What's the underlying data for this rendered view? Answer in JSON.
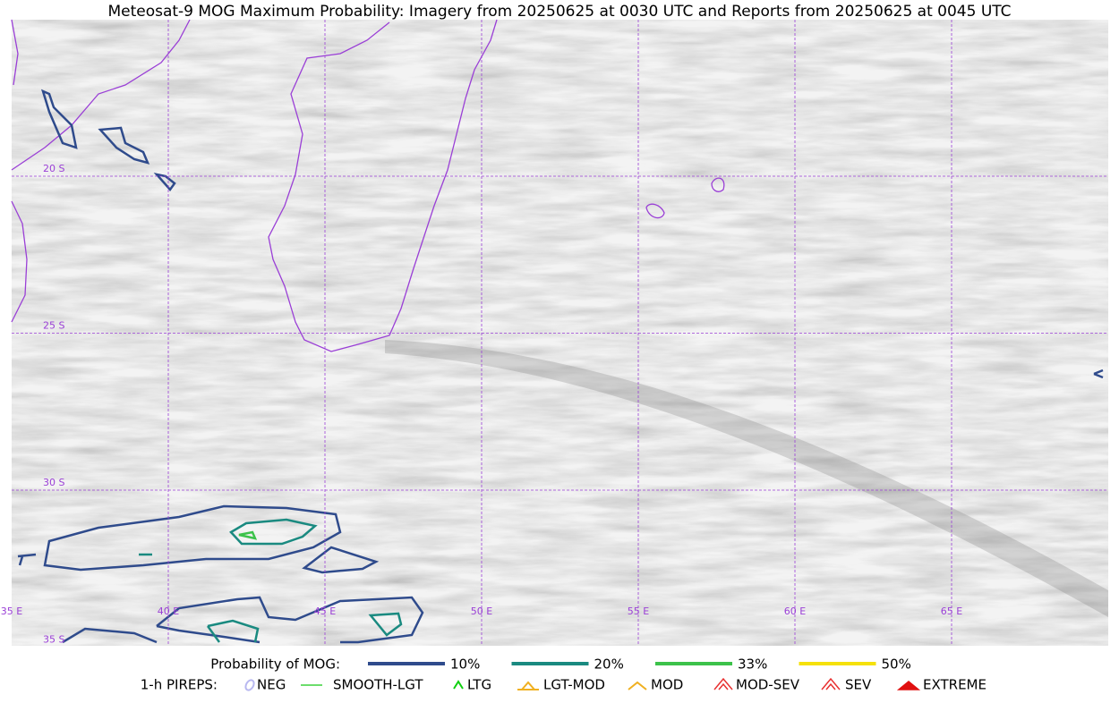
{
  "title": "Meteosat-9 MOG Maximum Probability: Imagery from 20250625 at 0030 UTC and Reports from 20250625 at 0045 UTC",
  "map": {
    "lat_labels": [
      "20 S",
      "25 S",
      "30 S",
      "35 S"
    ],
    "lon_labels": [
      "35 E",
      "40 E",
      "45 E",
      "50 E",
      "55 E",
      "60 E",
      "65 E"
    ]
  },
  "legend": {
    "probability": {
      "label": "Probability of MOG:",
      "items": [
        {
          "label": "10%",
          "color": "#2f4b8c"
        },
        {
          "label": "20%",
          "color": "#1a8a80"
        },
        {
          "label": "33%",
          "color": "#3cc24a"
        },
        {
          "label": "50%",
          "color": "#f5e10a"
        }
      ]
    },
    "pireps": {
      "label": "1-h PIREPS:",
      "items": [
        {
          "label": "NEG",
          "color": "#b8b8f0"
        },
        {
          "label": "SMOOTH-LGT",
          "color": "#3cd23c"
        },
        {
          "label": "LTG",
          "color": "#10d010"
        },
        {
          "label": "LGT-MOD",
          "color": "#f0b020"
        },
        {
          "label": "MOD",
          "color": "#f0b020"
        },
        {
          "label": "MOD-SEV",
          "color": "#e83030"
        },
        {
          "label": "SEV",
          "color": "#e83030"
        },
        {
          "label": "EXTREME",
          "color": "#e01010"
        }
      ]
    }
  }
}
